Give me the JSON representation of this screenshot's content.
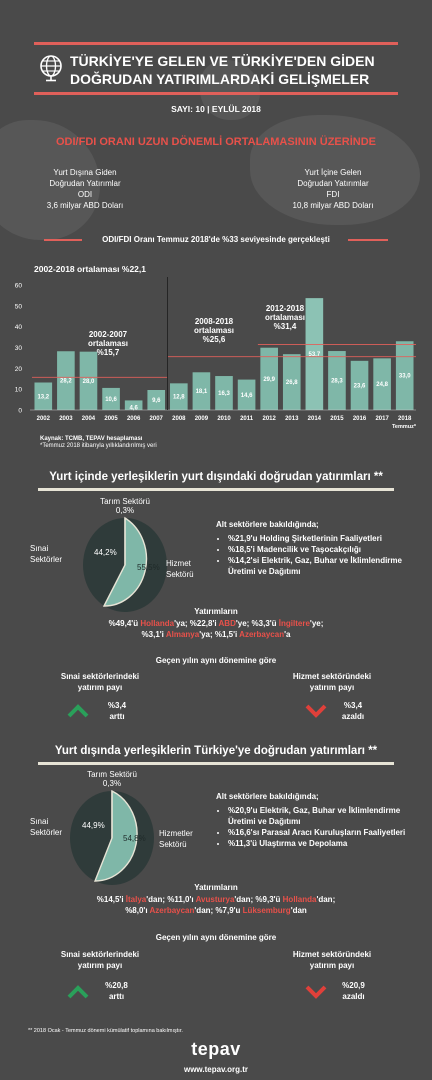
{
  "header": {
    "title_line1": "TÜRKİYE'YE GELEN VE TÜRKİYE'DEN GİDEN",
    "title_line2": "DOĞRUDAN YATIRIMLARDAKİ GELİŞMELER",
    "issue": "SAYI: 10 | EYLÜL 2018"
  },
  "section1": {
    "headline": "ODI/FDI ORANI UZUN DÖNEMLİ ORTALAMASININ ÜZERİNDE",
    "odi_label": [
      "Yurt Dışına Giden",
      "Doğrudan Yatırımlar",
      "ODI",
      "3,6 milyar ABD Doları"
    ],
    "fdi_label": [
      "Yurt İçine Gelen",
      "Doğrudan Yatırımlar",
      "FDI",
      "10,8 milyar ABD Doları"
    ],
    "ratio_note": "ODI/FDI Oranı Temmuz 2018'de %33 seviyesinde gerçekleşti"
  },
  "chart_data": {
    "type": "bar",
    "categories": [
      "2002",
      "2003",
      "2004",
      "2005",
      "2006",
      "2007",
      "2008",
      "2009",
      "2010",
      "2011",
      "2012",
      "2013",
      "2014",
      "2015",
      "2016",
      "2017",
      "2018"
    ],
    "values": [
      13.2,
      28.2,
      28.0,
      10.6,
      4.6,
      9.6,
      12.8,
      18.1,
      16.3,
      14.6,
      29.9,
      26.8,
      53.7,
      28.3,
      23.6,
      24.8,
      33.0
    ],
    "value_labels": [
      "13,2",
      "28,2",
      "28,0",
      "10,6",
      "4,6",
      "9,6",
      "12,8",
      "18,1",
      "16,3",
      "14,6",
      "29,9",
      "26,8",
      "53,7",
      "28,3",
      "23,6",
      "24,8",
      "33,0"
    ],
    "ylim": [
      0,
      60
    ],
    "yticks": [
      "0",
      "10",
      "20",
      "30",
      "40",
      "50",
      "60"
    ],
    "x_suffix_label": "Temmuz*",
    "averages": [
      {
        "label_lines": [
          "2002-2018 ortalaması %22,1"
        ],
        "value": 22.1
      },
      {
        "label_lines": [
          "2002-2007",
          "ortalaması",
          "%15,7"
        ],
        "value": 15.7
      },
      {
        "label_lines": [
          "2008-2018",
          "ortalaması",
          "%25,6"
        ],
        "value": 25.6
      },
      {
        "label_lines": [
          "2012-2018",
          "ortalaması",
          "%31,4"
        ],
        "value": 31.4
      }
    ],
    "bar_color": "#7fb7a8",
    "highlight_color": "#8cc2b4",
    "average_line_color": "#e0605a"
  },
  "source": {
    "line1": "Kaynak: TCMB, TEPAV hesaplaması",
    "line2": "*Temmuz 2018 itibarıyla yıllıklandırılmış veri"
  },
  "section2": {
    "heading": "Yurt içinde yerleşiklerin yurt dışındaki doğrudan yatırımları **",
    "pie": {
      "tarim_label": "Tarım Sektörü",
      "tarim_value": "0,3%",
      "sinai_label": [
        "Sınai",
        "Sektörler"
      ],
      "sinai_value": "44,2%",
      "hizmet_label": [
        "Hizmet",
        "Sektörü"
      ],
      "hizmet_value": "55,5%"
    },
    "alt_heading": "Alt sektörlere bakıldığında;",
    "alt_items": [
      "%21,9'u Holding Şirketlerinin Faaliyetleri",
      "%18,5'i Madencilik ve Taşocakçılığı",
      "%14,2'si Elektrik, Gaz, Buhar ve İklimlendirme Üretimi ve Dağıtımı"
    ],
    "investments_heading": "Yatırımların",
    "inv_line1": [
      "%49,4'ü ",
      "Hollanda",
      "'ya; %22,8'i ",
      "ABD",
      "'ye; %3,3'ü ",
      "İngiltere",
      "'ye;"
    ],
    "inv_line2": [
      "%3,1'i ",
      "Almanya",
      "'ya; %1,5'i ",
      "Azerbaycan",
      "'a"
    ],
    "compare_heading": "Geçen yılın aynı dönemine göre",
    "left_label": [
      "Sınai sektörlerindeki",
      "yatırım payı"
    ],
    "left_value": "%3,4",
    "left_change": "arttı",
    "right_label": [
      "Hizmet sektöründeki",
      "yatırım payı"
    ],
    "right_value": "%3,4",
    "right_change": "azaldı"
  },
  "section3": {
    "heading": "Yurt dışında yerleşiklerin Türkiye'ye doğrudan yatırımları **",
    "pie": {
      "tarim_label": "Tarım Sektörü",
      "tarim_value": "0,3%",
      "sinai_label": [
        "Sınai",
        "Sektörler"
      ],
      "sinai_value": "44,9%",
      "hizmet_label": [
        "Hizmetler",
        "Sektörü"
      ],
      "hizmet_value": "54,8%"
    },
    "alt_heading": "Alt sektörlere bakıldığında;",
    "alt_items": [
      "%20,9'u Elektrik, Gaz, Buhar ve İklimlendirme Üretimi ve Dağıtımı",
      "%16,6'sı Parasal Aracı Kuruluşların Faaliyetleri",
      "%11,3'ü Ulaştırma ve Depolama"
    ],
    "investments_heading": "Yatırımların",
    "inv_line1": [
      "%14,5'i ",
      "İtalya",
      "'dan; %11,0'ı ",
      "Avusturya",
      "'dan; %9,3'ü ",
      "Hollanda",
      "'dan;"
    ],
    "inv_line2": [
      "%8,0'ı ",
      "Azerbaycan",
      "'dan; %7,9'u ",
      "Lüksemburg",
      "'dan"
    ],
    "compare_heading": "Geçen yılın aynı dönemine göre",
    "left_label": [
      "Sınai sektörlerindeki",
      "yatırım payı"
    ],
    "left_value": "%20,8",
    "left_change": "arttı",
    "right_label": [
      "Hizmet sektöründeki",
      "yatırım payı"
    ],
    "right_value": "%20,9",
    "right_change": "azaldı"
  },
  "footer": {
    "note": "** 2018 Ocak - Temmuz dönemi kümülatif toplamına bakılmıştır.",
    "logo": "tepav",
    "url": "www.tepav.org.tr"
  }
}
